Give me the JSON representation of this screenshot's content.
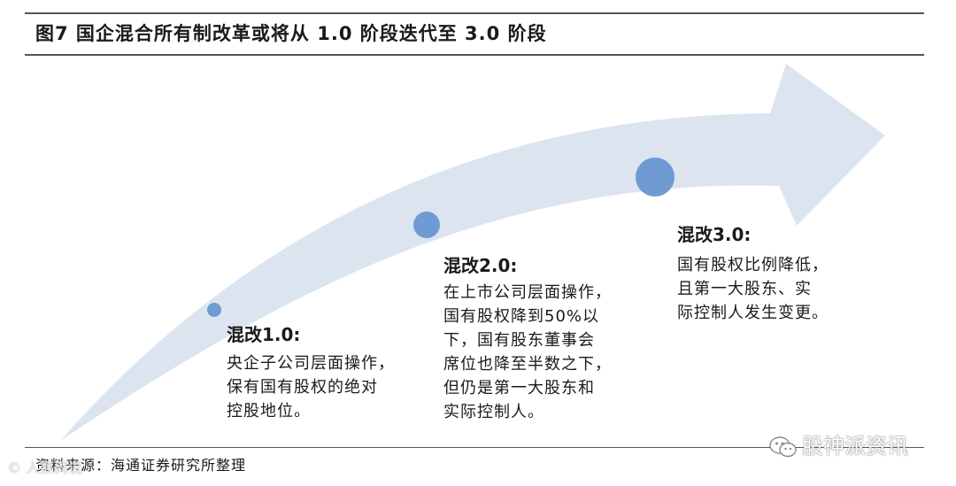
{
  "figure": {
    "title": "图7  国企混合所有制改革或将从 1.0 阶段迭代至 3.0 阶段"
  },
  "stages": [
    {
      "title": "混改1.0:",
      "lines": [
        "央企子公司层面操作，",
        "保有国有股权的绝对",
        "控股地位。"
      ]
    },
    {
      "title": "混改2.0:",
      "lines": [
        "在上市公司层面操作，",
        "国有股权降到50%以",
        "下，国有股东董事会",
        "席位也降至半数之下，",
        "但仍是第一大股东和",
        "实际控制人。"
      ]
    },
    {
      "title": "混改3.0:",
      "lines": [
        "国有股权比例降低，",
        "且第一大股东、实",
        "际控制人发生变更。"
      ]
    }
  ],
  "source": "资料来源：海通证券研究所整理",
  "watermarks": {
    "left": "© 人数码说",
    "right": "股神派资讯"
  },
  "colors": {
    "arrow_fill": "#dce4f0",
    "dot_fill": "#6f9ad2",
    "rule": "#555555",
    "text": "#1a1a1a"
  },
  "icons": {
    "wechat": "wechat-icon"
  }
}
